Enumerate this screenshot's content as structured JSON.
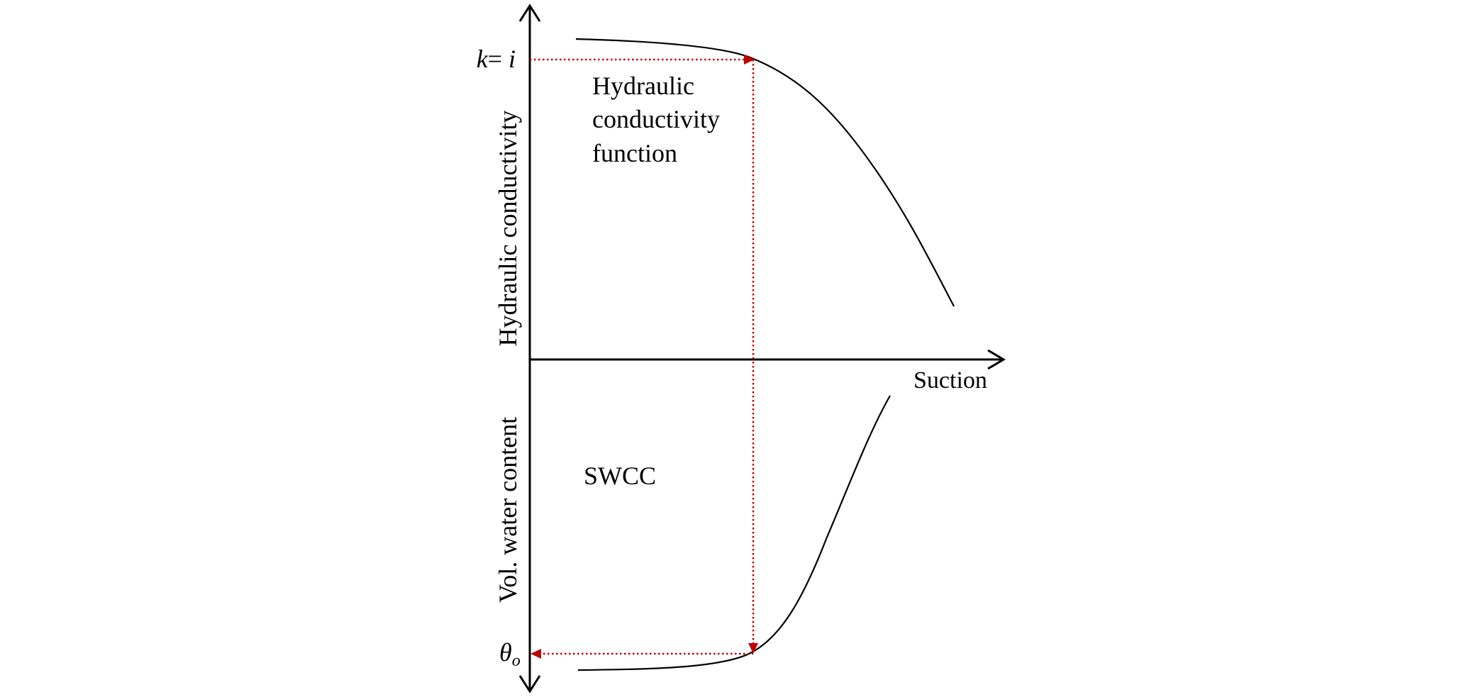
{
  "labels": {
    "upper_y_axis": "Hydraulic conductivity",
    "lower_y_axis": "Vol. water content",
    "x_axis": "Suction",
    "hcf_line1": "Hydraulic",
    "hcf_line2": "conductivity",
    "hcf_line3": "function",
    "swcc": "SWCC",
    "k_var": "k",
    "k_eq": "= ",
    "k_val": "i",
    "theta": "θ",
    "theta_sub": "o"
  },
  "colors": {
    "axis": "#000000",
    "curve": "#000000",
    "guide": "#c00000"
  }
}
